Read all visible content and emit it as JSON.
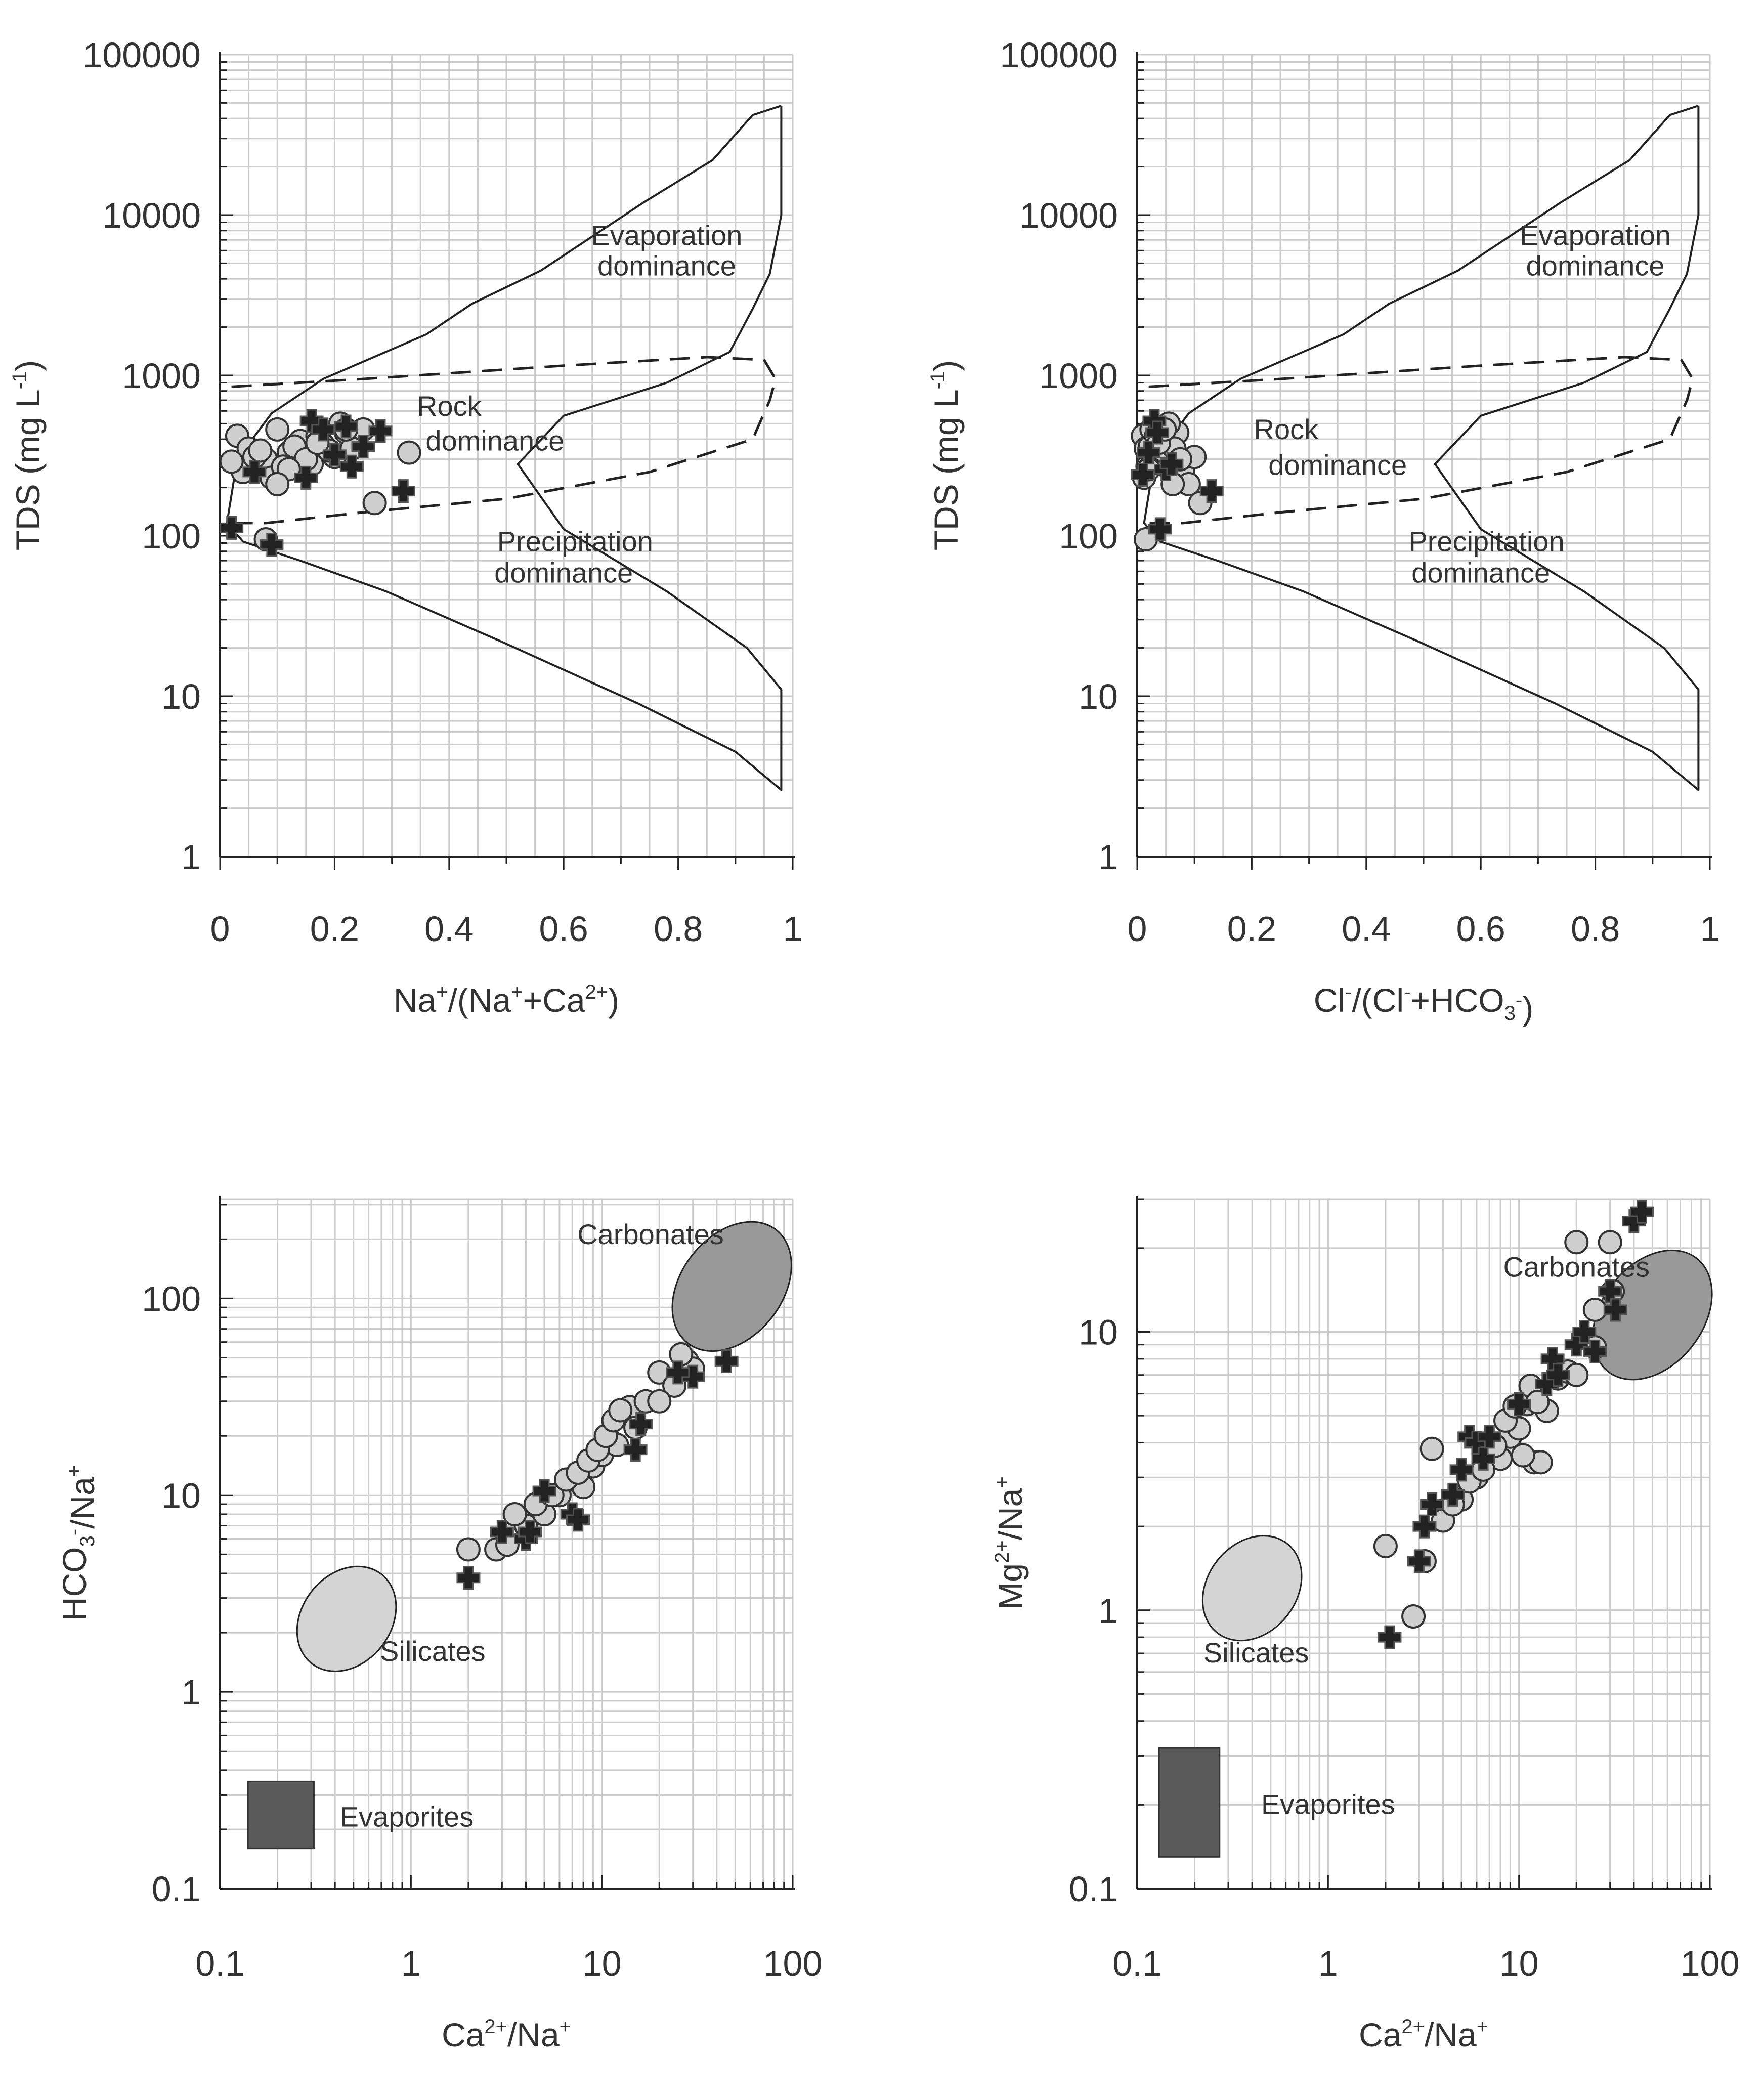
{
  "figure": {
    "title": ""
  },
  "styles": {
    "grid": "#cccccc",
    "axis": "#222222",
    "point_fill": "#cfcfcf",
    "point_stroke": "#333333",
    "cross_fill": "#222222",
    "carbonate_fill": "#999999",
    "silicate_fill": "#d4d4d4",
    "evaporite_fill": "#5a5a5a"
  },
  "chart_data": [
    {
      "id": "A",
      "type": "scatter",
      "title": "",
      "xscale": "linear",
      "xlim": [
        0,
        1
      ],
      "yscale": "log",
      "ylim": [
        1,
        100000
      ],
      "xticks": [
        0,
        0.2,
        0.4,
        0.6,
        0.8,
        1
      ],
      "xtick_labels": [
        "0",
        "0.2",
        "0.4",
        "0.6",
        "0.8",
        "1"
      ],
      "yticks": [
        1,
        10,
        100,
        1000,
        10000,
        100000
      ],
      "ytick_labels": [
        "1",
        "10",
        "100",
        "1000",
        "10000",
        "100000"
      ],
      "xlabel": "Na⁺/(Na⁺+Ca²⁺)",
      "ylabel": "TDS (mg L⁻¹)",
      "grid": true,
      "envelope_solid": [
        [
          0.98,
          48000
        ],
        [
          0.93,
          42000
        ],
        [
          0.86,
          22000
        ],
        [
          0.74,
          12000
        ],
        [
          0.56,
          4500
        ],
        [
          0.44,
          2800
        ],
        [
          0.36,
          1800
        ],
        [
          0.18,
          950
        ],
        [
          0.09,
          580
        ],
        [
          0.03,
          300
        ],
        [
          0.012,
          120
        ],
        [
          0.04,
          92
        ],
        [
          0.14,
          70
        ],
        [
          0.29,
          45
        ],
        [
          0.49,
          22
        ],
        [
          0.73,
          9
        ],
        [
          0.9,
          4.5
        ],
        [
          0.98,
          2.6
        ],
        [
          0.98,
          11
        ],
        [
          0.92,
          20
        ],
        [
          0.78,
          45
        ],
        [
          0.6,
          110
        ],
        [
          0.52,
          280
        ],
        [
          0.6,
          560
        ],
        [
          0.78,
          900
        ],
        [
          0.89,
          1400
        ],
        [
          0.93,
          2600
        ],
        [
          0.96,
          4300
        ],
        [
          0.98,
          10000
        ],
        [
          0.98,
          48000
        ]
      ],
      "envelope_dashed": [
        [
          0.02,
          850
        ],
        [
          0.25,
          950
        ],
        [
          0.6,
          1150
        ],
        [
          0.85,
          1300
        ],
        [
          0.95,
          1250
        ],
        [
          0.97,
          950
        ],
        [
          0.96,
          700
        ],
        [
          0.93,
          400
        ],
        [
          0.75,
          250
        ],
        [
          0.5,
          170
        ],
        [
          0.25,
          140
        ],
        [
          0.08,
          120
        ],
        [
          0.02,
          120
        ]
      ],
      "annotations": [
        {
          "text": "Evaporation",
          "x": 0.78,
          "y": 6500
        },
        {
          "text": "dominance",
          "x": 0.78,
          "y": 4200
        },
        {
          "text": "Rock",
          "x": 0.4,
          "y": 560
        },
        {
          "text": "dominance",
          "x": 0.48,
          "y": 340
        },
        {
          "text": "Precipitation",
          "x": 0.62,
          "y": 80
        },
        {
          "text": "dominance",
          "x": 0.6,
          "y": 51
        }
      ],
      "series": [
        {
          "name": "circles",
          "marker": "circle",
          "x": [
            0.03,
            0.05,
            0.08,
            0.1,
            0.12,
            0.14,
            0.16,
            0.18,
            0.2,
            0.22,
            0.04,
            0.06,
            0.09,
            0.11,
            0.13,
            0.15,
            0.17,
            0.19,
            0.21,
            0.23,
            0.25,
            0.02,
            0.07,
            0.33,
            0.27,
            0.08,
            0.12,
            0.17,
            0.22,
            0.1
          ],
          "y": [
            420,
            350,
            300,
            460,
            330,
            390,
            280,
            370,
            310,
            440,
            250,
            310,
            230,
            270,
            360,
            300,
            420,
            340,
            500,
            350,
            460,
            290,
            340,
            330,
            160,
            95,
            260,
            380,
            460,
            210
          ]
        },
        {
          "name": "crosses",
          "marker": "cross",
          "x": [
            0.02,
            0.16,
            0.18,
            0.22,
            0.25,
            0.28,
            0.32,
            0.23,
            0.09,
            0.06,
            0.15,
            0.2
          ],
          "y": [
            112,
            520,
            460,
            480,
            360,
            450,
            190,
            270,
            88,
            250,
            230,
            320
          ]
        }
      ]
    },
    {
      "id": "B",
      "type": "scatter",
      "title": "",
      "xscale": "linear",
      "xlim": [
        0,
        1
      ],
      "yscale": "log",
      "ylim": [
        1,
        100000
      ],
      "xticks": [
        0,
        0.2,
        0.4,
        0.6,
        0.8,
        1
      ],
      "xtick_labels": [
        "0",
        "0.2",
        "0.4",
        "0.6",
        "0.8",
        "1"
      ],
      "yticks": [
        1,
        10,
        100,
        1000,
        10000,
        100000
      ],
      "ytick_labels": [
        "1",
        "10",
        "100",
        "1000",
        "10000",
        "100000"
      ],
      "xlabel": "Cl⁻/(Cl⁻+HCO₃⁻)",
      "ylabel": "TDS (mg L⁻¹)",
      "grid": true,
      "envelope_solid": [
        [
          0.98,
          48000
        ],
        [
          0.93,
          42000
        ],
        [
          0.86,
          22000
        ],
        [
          0.74,
          12000
        ],
        [
          0.56,
          4500
        ],
        [
          0.44,
          2800
        ],
        [
          0.36,
          1800
        ],
        [
          0.18,
          950
        ],
        [
          0.09,
          580
        ],
        [
          0.03,
          300
        ],
        [
          0.012,
          120
        ],
        [
          0.04,
          92
        ],
        [
          0.14,
          70
        ],
        [
          0.29,
          45
        ],
        [
          0.49,
          22
        ],
        [
          0.73,
          9
        ],
        [
          0.9,
          4.5
        ],
        [
          0.98,
          2.6
        ],
        [
          0.98,
          11
        ],
        [
          0.92,
          20
        ],
        [
          0.78,
          45
        ],
        [
          0.6,
          110
        ],
        [
          0.52,
          280
        ],
        [
          0.6,
          560
        ],
        [
          0.78,
          900
        ],
        [
          0.89,
          1400
        ],
        [
          0.93,
          2600
        ],
        [
          0.96,
          4300
        ],
        [
          0.98,
          10000
        ],
        [
          0.98,
          48000
        ]
      ],
      "envelope_dashed": [
        [
          0.02,
          850
        ],
        [
          0.25,
          950
        ],
        [
          0.6,
          1150
        ],
        [
          0.85,
          1300
        ],
        [
          0.95,
          1250
        ],
        [
          0.97,
          950
        ],
        [
          0.96,
          700
        ],
        [
          0.93,
          400
        ],
        [
          0.75,
          250
        ],
        [
          0.5,
          170
        ],
        [
          0.25,
          140
        ],
        [
          0.08,
          120
        ],
        [
          0.02,
          120
        ]
      ],
      "annotations": [
        {
          "text": "Evaporation",
          "x": 0.8,
          "y": 6500
        },
        {
          "text": "dominance",
          "x": 0.8,
          "y": 4200
        },
        {
          "text": "Rock",
          "x": 0.26,
          "y": 400
        },
        {
          "text": "dominance",
          "x": 0.35,
          "y": 240
        },
        {
          "text": "Precipitation",
          "x": 0.61,
          "y": 80
        },
        {
          "text": "dominance",
          "x": 0.6,
          "y": 51
        }
      ],
      "series": [
        {
          "name": "circles",
          "marker": "circle",
          "x": [
            0.01,
            0.015,
            0.02,
            0.025,
            0.03,
            0.035,
            0.04,
            0.05,
            0.06,
            0.07,
            0.08,
            0.1,
            0.012,
            0.018,
            0.022,
            0.028,
            0.033,
            0.045,
            0.055,
            0.065,
            0.09,
            0.11,
            0.015,
            0.02,
            0.038,
            0.048,
            0.062,
            0.075
          ],
          "y": [
            420,
            350,
            300,
            460,
            330,
            390,
            280,
            370,
            310,
            440,
            250,
            310,
            230,
            270,
            360,
            300,
            420,
            340,
            500,
            350,
            210,
            160,
            95,
            260,
            380,
            460,
            210,
            300
          ]
        },
        {
          "name": "crosses",
          "marker": "cross",
          "x": [
            0.01,
            0.03,
            0.05,
            0.13,
            0.04,
            0.06,
            0.02,
            0.035
          ],
          "y": [
            240,
            520,
            260,
            190,
            110,
            280,
            330,
            440
          ]
        }
      ]
    },
    {
      "id": "C",
      "type": "scatter",
      "title": "",
      "xscale": "log",
      "xlim": [
        0.1,
        100
      ],
      "yscale": "log",
      "ylim": [
        0.1,
        320
      ],
      "xticks": [
        0.1,
        1,
        10,
        100
      ],
      "xtick_labels": [
        "0.1",
        "1",
        "10",
        "100"
      ],
      "yticks": [
        0.1,
        1,
        10,
        100
      ],
      "ytick_labels": [
        "0.1",
        "1",
        "10",
        "100"
      ],
      "xlabel": "Ca²⁺/Na⁺",
      "ylabel": "HCO₃⁻/Na⁺",
      "grid": true,
      "regions": [
        {
          "name": "Carbonates",
          "shape": "ellipse",
          "cx": 48,
          "cy": 115,
          "label_x": 18,
          "label_y": 210
        },
        {
          "name": "Silicates",
          "shape": "ellipse",
          "cx": 0.46,
          "cy": 2.35,
          "label_x": 1.3,
          "label_y": 1.6
        },
        {
          "name": "Evaporites",
          "shape": "rect",
          "x0": 0.14,
          "x1": 0.31,
          "y0": 0.16,
          "y1": 0.35,
          "label_x": 0.95,
          "label_y": 0.23
        }
      ],
      "series": [
        {
          "name": "circles",
          "marker": "circle",
          "x": [
            2,
            2.8,
            3.2,
            4,
            5,
            6,
            7,
            8,
            9,
            10,
            11,
            12,
            13,
            14,
            15,
            17,
            20,
            24,
            28,
            30,
            3.5,
            4.5,
            5.5,
            6.5,
            7.5,
            8.5,
            9.5,
            10.5,
            11.5,
            12.5,
            20,
            26
          ],
          "y": [
            5.3,
            5.3,
            5.6,
            7,
            8,
            10,
            12,
            11,
            14,
            16,
            19,
            18,
            26,
            28,
            22,
            30,
            42,
            36,
            48,
            44,
            8,
            9,
            10,
            12,
            13,
            15,
            17,
            20,
            24,
            27,
            30,
            52
          ]
        },
        {
          "name": "crosses",
          "marker": "cross",
          "x": [
            2,
            3,
            4,
            5,
            7,
            7.5,
            15,
            16,
            30,
            45,
            25,
            4.2
          ],
          "y": [
            3.8,
            6.5,
            6,
            10.5,
            8,
            7.5,
            17,
            23,
            40,
            48,
            42,
            6.5
          ]
        }
      ]
    },
    {
      "id": "D",
      "type": "scatter",
      "title": "",
      "xscale": "log",
      "xlim": [
        0.1,
        100
      ],
      "yscale": "log",
      "ylim": [
        0.1,
        30
      ],
      "xticks": [
        0.1,
        1,
        10,
        100
      ],
      "xtick_labels": [
        "0.1",
        "1",
        "10",
        "100"
      ],
      "yticks": [
        0.1,
        1,
        10
      ],
      "ytick_labels": [
        "0.1",
        "1",
        "10"
      ],
      "xlabel": "Ca²⁺/Na⁺",
      "ylabel": "Mg²⁺/Na⁺",
      "grid": true,
      "regions": [
        {
          "name": "Carbonates",
          "shape": "ellipse",
          "cx": 50,
          "cy": 11.5,
          "label_x": 20,
          "label_y": 17
        },
        {
          "name": "Silicates",
          "shape": "ellipse",
          "cx": 0.4,
          "cy": 1.2,
          "label_x": 0.42,
          "label_y": 0.7
        },
        {
          "name": "Evaporites",
          "shape": "rect",
          "x0": 0.13,
          "x1": 0.27,
          "y0": 0.13,
          "y1": 0.32,
          "label_x": 1,
          "label_y": 0.2
        }
      ],
      "series": [
        {
          "name": "circles",
          "marker": "circle",
          "x": [
            2,
            2.8,
            3.2,
            4,
            5,
            6,
            7,
            8,
            9,
            10,
            11,
            12,
            13,
            14,
            16,
            18,
            20,
            25,
            30,
            3.5,
            4.5,
            5.5,
            6.5,
            7.5,
            8.5,
            9.5,
            10.5,
            11.5,
            12.5,
            20,
            25,
            31
          ],
          "y": [
            1.7,
            0.95,
            1.5,
            2.1,
            2.5,
            3,
            4,
            3.5,
            4.2,
            4.5,
            5.5,
            3.4,
            3.4,
            5.2,
            6.8,
            7.2,
            21,
            8.8,
            21,
            3.8,
            2.4,
            2.9,
            3.2,
            3.9,
            4.8,
            5.4,
            3.6,
            6.4,
            5.6,
            7,
            12,
            14
          ]
        },
        {
          "name": "crosses",
          "marker": "cross",
          "x": [
            2.1,
            3,
            3.2,
            3.5,
            4.5,
            5,
            5.5,
            6,
            6.5,
            7,
            10,
            14,
            15,
            16,
            20,
            22,
            25,
            30,
            40,
            44,
            32
          ],
          "y": [
            0.8,
            1.5,
            2,
            2.4,
            2.6,
            3.2,
            4.2,
            4,
            3.5,
            4.2,
            5.5,
            6.5,
            8,
            7,
            9,
            10,
            8.5,
            14,
            25,
            27,
            12
          ]
        }
      ]
    }
  ]
}
